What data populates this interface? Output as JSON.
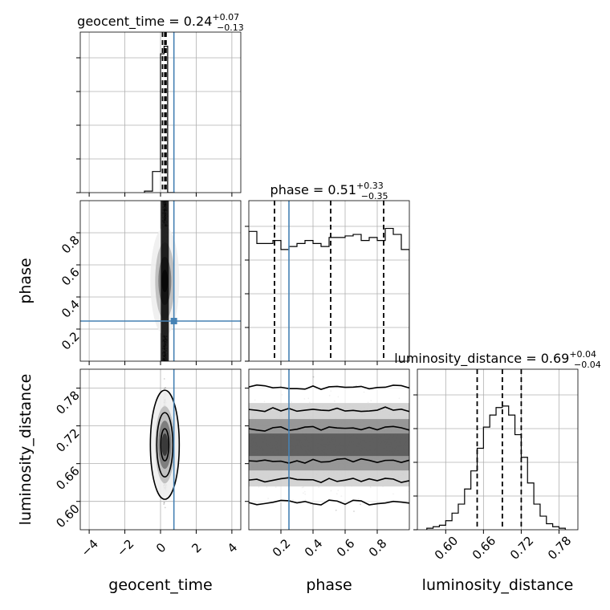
{
  "chart_data": {
    "type": "corner",
    "parameters": [
      "geocent_time",
      "phase",
      "luminosity_distance"
    ],
    "axis_labels": {
      "geocent_time": "geocent_time",
      "phase": "phase",
      "luminosity_distance": "luminosity_distance"
    },
    "titles": {
      "geocent_time": {
        "name": "geocent_time",
        "median": "0.24",
        "plus": "+0.07",
        "minus": "−0.13"
      },
      "phase": {
        "name": "phase",
        "median": "0.51",
        "plus": "+0.33",
        "minus": "−0.35"
      },
      "luminosity_distance": {
        "name": "luminosity_distance",
        "median": "0.69",
        "plus": "+0.04",
        "minus": "−0.04"
      }
    },
    "ranges": {
      "geocent_time": [
        -4.5,
        4.5
      ],
      "phase": [
        0.0,
        1.0
      ],
      "luminosity_distance": [
        0.555,
        0.81
      ]
    },
    "ticks": {
      "geocent_time": {
        "values": [
          -4,
          -2,
          0,
          2,
          4
        ],
        "labels": [
          "−4",
          "−2",
          "0",
          "2",
          "4"
        ]
      },
      "phase": {
        "values": [
          0.2,
          0.4,
          0.6,
          0.8
        ],
        "labels": [
          "0.2",
          "0.4",
          "0.6",
          "0.8"
        ]
      },
      "luminosity_distance": {
        "values": [
          0.6,
          0.66,
          0.72,
          0.78
        ],
        "labels": [
          "0.60",
          "0.66",
          "0.72",
          "0.78"
        ]
      }
    },
    "truths": {
      "geocent_time": 0.75,
      "phase": 0.25,
      "luminosity_distance": null
    },
    "quantiles": {
      "geocent_time": [
        0.11,
        0.24,
        0.31
      ],
      "phase": [
        0.16,
        0.51,
        0.84
      ],
      "luminosity_distance": [
        0.65,
        0.69,
        0.72
      ]
    },
    "histograms": {
      "geocent_time": {
        "edges": [
          -0.9,
          -0.45,
          0.0,
          0.2,
          0.4,
          0.6,
          0.8
        ],
        "counts": [
          0.01,
          0.14,
          0.92,
          0.97,
          0.0,
          0.0
        ],
        "ymax": 1.0
      },
      "phase": {
        "edges": [
          0.0,
          0.05,
          0.1,
          0.15,
          0.2,
          0.25,
          0.3,
          0.35,
          0.4,
          0.45,
          0.5,
          0.55,
          0.6,
          0.65,
          0.7,
          0.75,
          0.8,
          0.85,
          0.9,
          0.95,
          1.0
        ],
        "counts": [
          0.86,
          0.78,
          0.78,
          0.8,
          0.74,
          0.76,
          0.78,
          0.8,
          0.78,
          0.76,
          0.82,
          0.82,
          0.83,
          0.84,
          0.8,
          0.82,
          0.8,
          0.88,
          0.84,
          0.74
        ],
        "ymax": 1.0
      },
      "luminosity_distance": {
        "edges": [
          0.57,
          0.58,
          0.59,
          0.6,
          0.61,
          0.62,
          0.63,
          0.64,
          0.65,
          0.66,
          0.67,
          0.68,
          0.69,
          0.7,
          0.71,
          0.72,
          0.73,
          0.74,
          0.75,
          0.76,
          0.77,
          0.78,
          0.79
        ],
        "counts": [
          0.01,
          0.02,
          0.03,
          0.06,
          0.11,
          0.17,
          0.27,
          0.39,
          0.54,
          0.68,
          0.76,
          0.81,
          0.82,
          0.76,
          0.63,
          0.48,
          0.31,
          0.17,
          0.09,
          0.04,
          0.02,
          0.01
        ],
        "ymax": 1.0
      }
    },
    "grid": true
  }
}
